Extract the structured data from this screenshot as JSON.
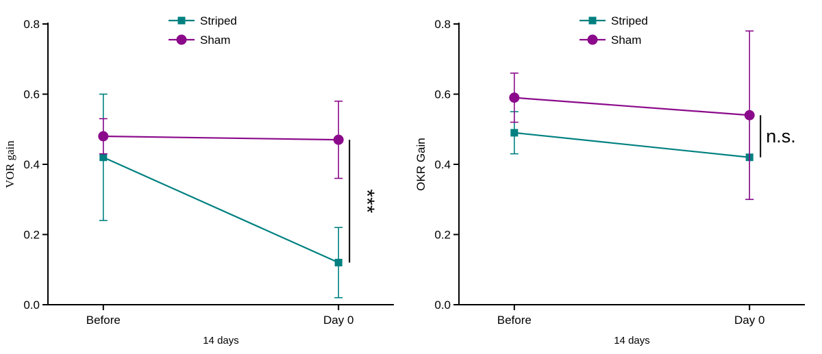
{
  "figure": {
    "background": "#ffffff",
    "teal": "#008080",
    "purple": "#8b0a8b",
    "footnote_color": "#9b9b9b"
  },
  "chart_data": [
    {
      "type": "line",
      "title": "",
      "ylabel": "VOR gain",
      "xlabel": "",
      "x_footnote": "14 days",
      "categories": [
        "Before",
        "Day 0"
      ],
      "ylim": [
        0.0,
        0.8
      ],
      "yticks": [
        "0.0",
        "0.2",
        "0.4",
        "0.6",
        "0.8"
      ],
      "grid": false,
      "legend_position": "top",
      "series": [
        {
          "name": "Striped",
          "marker": "square",
          "color": "#008080",
          "values": [
            0.42,
            0.12
          ],
          "errors": [
            0.18,
            0.1
          ]
        },
        {
          "name": "Sham",
          "marker": "circle",
          "color": "#8b0a8b",
          "values": [
            0.48,
            0.47
          ],
          "errors": [
            0.05,
            0.11
          ]
        }
      ],
      "significance": {
        "text": "***",
        "category_index": 1,
        "y_top": 0.47,
        "y_bottom": 0.12,
        "rotated": true
      }
    },
    {
      "type": "line",
      "title": "",
      "ylabel": "OKR Gain",
      "xlabel": "",
      "x_footnote": "14 days",
      "categories": [
        "Before",
        "Day 0"
      ],
      "ylim": [
        0.0,
        0.8
      ],
      "yticks": [
        "0.0",
        "0.2",
        "0.4",
        "0.6",
        "0.8"
      ],
      "grid": false,
      "legend_position": "top",
      "series": [
        {
          "name": "Striped",
          "marker": "square",
          "color": "#008080",
          "values": [
            0.49,
            0.42
          ],
          "errors": [
            0.06,
            0.12
          ]
        },
        {
          "name": "Sham",
          "marker": "circle",
          "color": "#8b0a8b",
          "values": [
            0.59,
            0.54
          ],
          "errors": [
            0.07,
            0.24
          ]
        }
      ],
      "significance": {
        "text": "n.s.",
        "category_index": 1,
        "y_top": 0.54,
        "y_bottom": 0.42,
        "rotated": false
      }
    }
  ]
}
